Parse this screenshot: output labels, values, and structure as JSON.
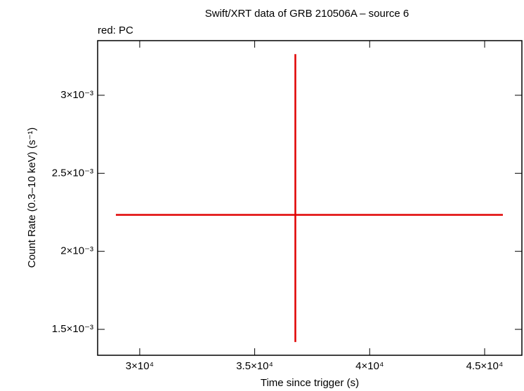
{
  "chart_data": {
    "type": "scatter",
    "title": "Swift/XRT data of GRB 210506A – source 6",
    "x_label": "Time since trigger (s)",
    "y_label": "Count Rate (0.3–10 keV) (s⁻¹)",
    "xlim": [
      28170,
      46620
    ],
    "ylim": [
      0.001334,
      0.00335
    ],
    "xticks": [
      {
        "value": 30000,
        "label": "3×10⁴"
      },
      {
        "value": 35000,
        "label": "3.5×10⁴"
      },
      {
        "value": 40000,
        "label": "4×10⁴"
      },
      {
        "value": 45000,
        "label": "4.5×10⁴"
      }
    ],
    "yticks": [
      {
        "value": 0.0015,
        "label": "1.5×10⁻³"
      },
      {
        "value": 0.002,
        "label": "2×10⁻³"
      },
      {
        "value": 0.0025,
        "label": "2.5×10⁻³"
      },
      {
        "value": 0.003,
        "label": "3×10⁻³"
      }
    ],
    "series": [
      {
        "name": "red: PC",
        "color": "#e00000",
        "x": [
          36768
        ],
        "values": [
          0.0022335
        ],
        "xerr_minus": [
          7805
        ],
        "xerr_plus": [
          9025
        ],
        "yerr_minus": [
          0.000815
        ],
        "yerr_plus": [
          0.00103
        ]
      }
    ]
  }
}
